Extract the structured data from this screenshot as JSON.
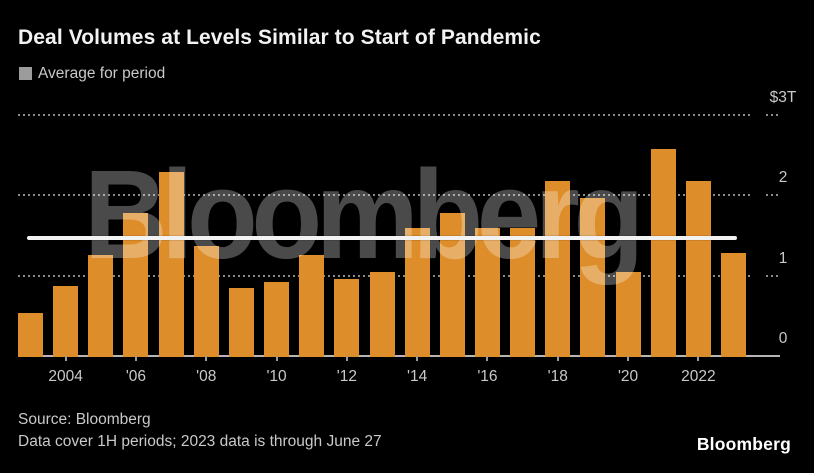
{
  "title": "Deal Volumes at Levels Similar to Start of Pandemic",
  "legend": {
    "label": "Average for period",
    "swatch_color": "#9c9c9c"
  },
  "footer": {
    "source_line": "Source: Bloomberg",
    "note_line": "Data cover 1H periods; 2023 data is through June 27"
  },
  "branding": {
    "logo_text": "Bloomberg",
    "watermark_text": "Bloomberg"
  },
  "chart_data": {
    "type": "bar",
    "title": "Deal Volumes at Levels Similar to Start of Pandemic",
    "unit": "USD trillions",
    "categories": [
      2003,
      2004,
      2005,
      2006,
      2007,
      2008,
      2009,
      2010,
      2011,
      2012,
      2013,
      2014,
      2015,
      2016,
      2017,
      2018,
      2019,
      2020,
      2021,
      2022,
      2023
    ],
    "values": [
      0.53,
      0.87,
      1.25,
      1.78,
      2.29,
      1.37,
      0.84,
      0.92,
      1.25,
      0.96,
      1.04,
      1.59,
      1.78,
      1.59,
      1.59,
      2.17,
      1.96,
      1.04,
      2.57,
      2.17,
      1.28
    ],
    "average_for_period": 1.47,
    "ylim": [
      0,
      3
    ],
    "y_ticks": [
      {
        "label": "$3T",
        "value": 3
      },
      {
        "label": "2",
        "value": 2
      },
      {
        "label": "1",
        "value": 1
      },
      {
        "label": "0",
        "value": 0
      }
    ],
    "x_ticks": [
      {
        "label": "2004",
        "year": 2004
      },
      {
        "label": "'06",
        "year": 2006
      },
      {
        "label": "'08",
        "year": 2008
      },
      {
        "label": "'10",
        "year": 2010
      },
      {
        "label": "'12",
        "year": 2012
      },
      {
        "label": "'14",
        "year": 2014
      },
      {
        "label": "'16",
        "year": 2016
      },
      {
        "label": "'18",
        "year": 2018
      },
      {
        "label": "'20",
        "year": 2020
      },
      {
        "label": "2022",
        "year": 2022
      }
    ],
    "grid": "dotted horizontal lines, legend top-left, value axis on right",
    "colors": {
      "bar": "#de8d2b",
      "average_line": "#f2f2f2",
      "background": "#000000",
      "grid_dots": "#8a8a8a",
      "axis_text": "#c9c9c9"
    }
  }
}
